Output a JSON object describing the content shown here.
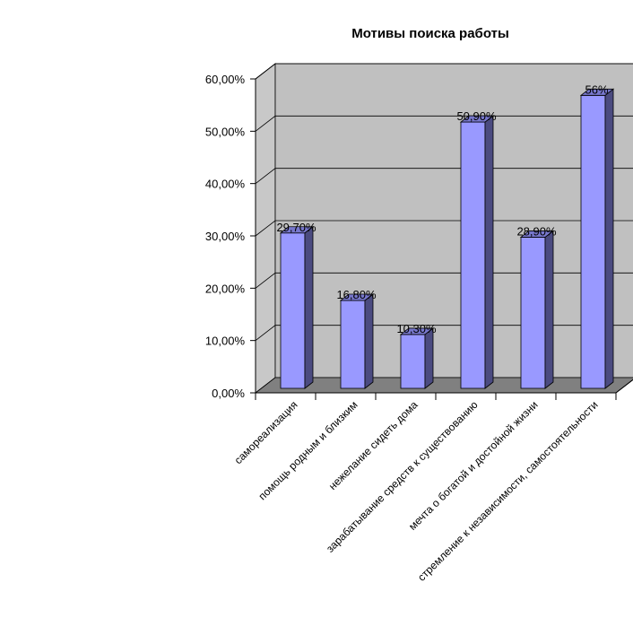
{
  "chart_data": {
    "type": "bar",
    "title": "Мотивы поиска работы",
    "categories": [
      "самореализация",
      "помощь родным и близким",
      "нежелание сидеть дома",
      "зарабатывание средств к существованию",
      "мечта о богатой и достойной жизни",
      "стремление к независимости, самостоятельности"
    ],
    "values": [
      29.7,
      16.8,
      10.3,
      50.9,
      28.9,
      56
    ],
    "data_labels": [
      "29,70%",
      "16,80%",
      "10,30%",
      "50,90%",
      "28,90%",
      "56%"
    ],
    "ylim": [
      0,
      60
    ],
    "yticks": [
      0,
      10,
      20,
      30,
      40,
      50,
      60
    ],
    "ytick_labels": [
      "0,00%",
      "10,00%",
      "20,00%",
      "30,00%",
      "40,00%",
      "50,00%",
      "60,00%"
    ],
    "grid": true,
    "legend": false,
    "three_d": true,
    "colors": {
      "bar_front": "#9999ff",
      "bar_side": "#4b4b80",
      "bar_top": "#7777cc",
      "back_wall": "#c0c0c0",
      "side_wall": "#c8c8c8",
      "floor": "#808080"
    }
  }
}
